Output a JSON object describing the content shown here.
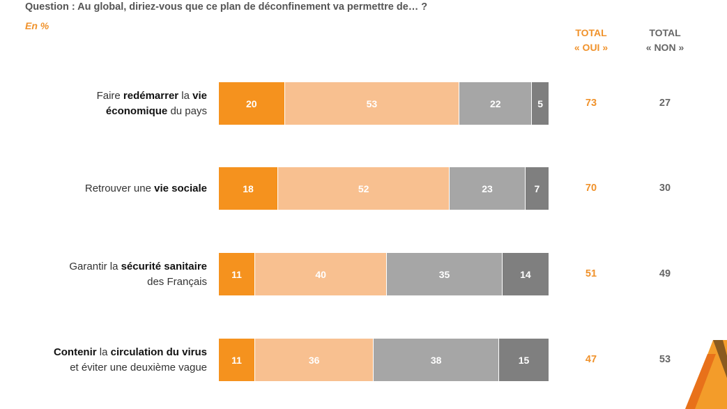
{
  "header": {
    "question": "Question : Au global, diriez-vous que ce plan de déconfinement va permettre de… ?",
    "unit": "En %"
  },
  "columns": {
    "oui_line1": "TOTAL",
    "oui_line2": "« OUI »",
    "non_line1": "TOTAL",
    "non_line2": "« NON »"
  },
  "colors": {
    "seg1": "#f5921e",
    "seg2": "#f8c090",
    "seg3": "#a6a6a6",
    "seg4": "#7f7f7f",
    "accent": "#f0922b"
  },
  "chart_data": {
    "type": "bar",
    "orientation": "horizontal",
    "stacked": true,
    "title": "Question : Au global, diriez-vous que ce plan de déconfinement va permettre de… ?",
    "unit": "En %",
    "categories": [
      [
        {
          "t": "Faire "
        },
        {
          "t": "redémarrer",
          "b": true
        },
        {
          "t": " la "
        },
        {
          "t": "vie",
          "b": true
        },
        {
          "br": true
        },
        {
          "t": "économique",
          "b": true
        },
        {
          "t": " du pays"
        }
      ],
      [
        {
          "t": "Retrouver une "
        },
        {
          "t": "vie sociale",
          "b": true
        }
      ],
      [
        {
          "t": "Garantir la "
        },
        {
          "t": "sécurité sanitaire",
          "b": true
        },
        {
          "br": true
        },
        {
          "t": "des Français"
        }
      ],
      [
        {
          "t": "Contenir",
          "b": true
        },
        {
          "t": " la "
        },
        {
          "t": "circulation du virus",
          "b": true
        },
        {
          "br": true
        },
        {
          "t": "et éviter une deuxième vague"
        }
      ]
    ],
    "series": [
      {
        "name": "seg1",
        "values": [
          20,
          18,
          11,
          11
        ]
      },
      {
        "name": "seg2",
        "values": [
          53,
          52,
          40,
          36
        ]
      },
      {
        "name": "seg3",
        "values": [
          22,
          23,
          35,
          38
        ]
      },
      {
        "name": "seg4",
        "values": [
          5,
          7,
          14,
          15
        ]
      }
    ],
    "totals_oui": [
      73,
      70,
      51,
      47
    ],
    "totals_non": [
      27,
      30,
      49,
      53
    ],
    "xlim": [
      0,
      100
    ]
  }
}
